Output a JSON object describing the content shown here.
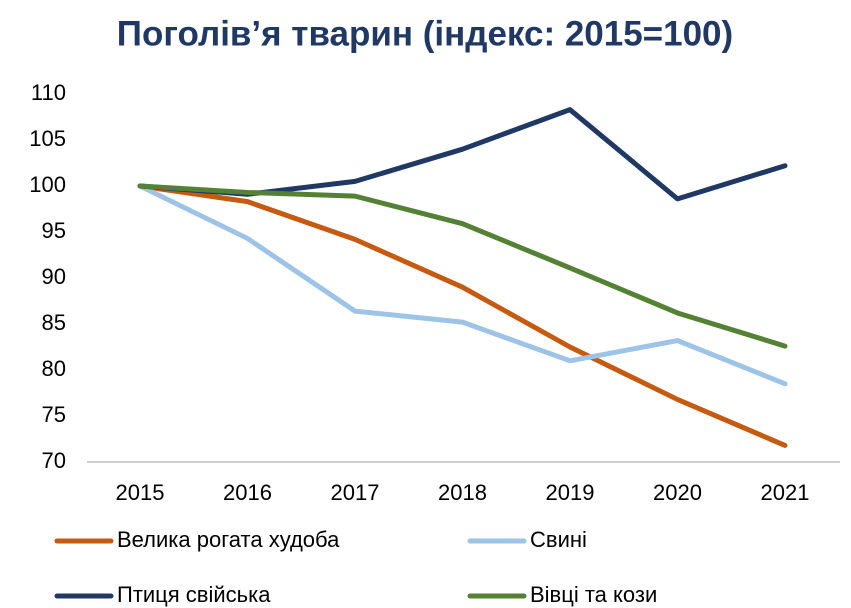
{
  "chart_data": {
    "type": "line",
    "title": "Поголів’я тварин (індекс: 2015=100)",
    "categories": [
      "2015",
      "2016",
      "2017",
      "2018",
      "2019",
      "2020",
      "2021"
    ],
    "series": [
      {
        "name": "Велика рогата худоба",
        "color": "#c55a11",
        "values": [
          100,
          98.3,
          94.2,
          89.0,
          82.5,
          76.8,
          71.8
        ]
      },
      {
        "name": "Свині",
        "color": "#9dc3e6",
        "values": [
          100,
          94.3,
          86.4,
          85.2,
          81.0,
          83.2,
          78.5
        ]
      },
      {
        "name": "Птиця свійська",
        "color": "#1f3864",
        "values": [
          100,
          99.1,
          100.5,
          104.0,
          108.3,
          98.6,
          102.2
        ]
      },
      {
        "name": "Вівці та кози",
        "color": "#548235",
        "values": [
          100,
          99.3,
          98.9,
          95.9,
          91.1,
          86.2,
          82.6
        ]
      }
    ],
    "ylim": [
      70,
      110
    ],
    "yticks": [
      70,
      75,
      80,
      85,
      90,
      95,
      100,
      105,
      110
    ],
    "grid": false
  }
}
